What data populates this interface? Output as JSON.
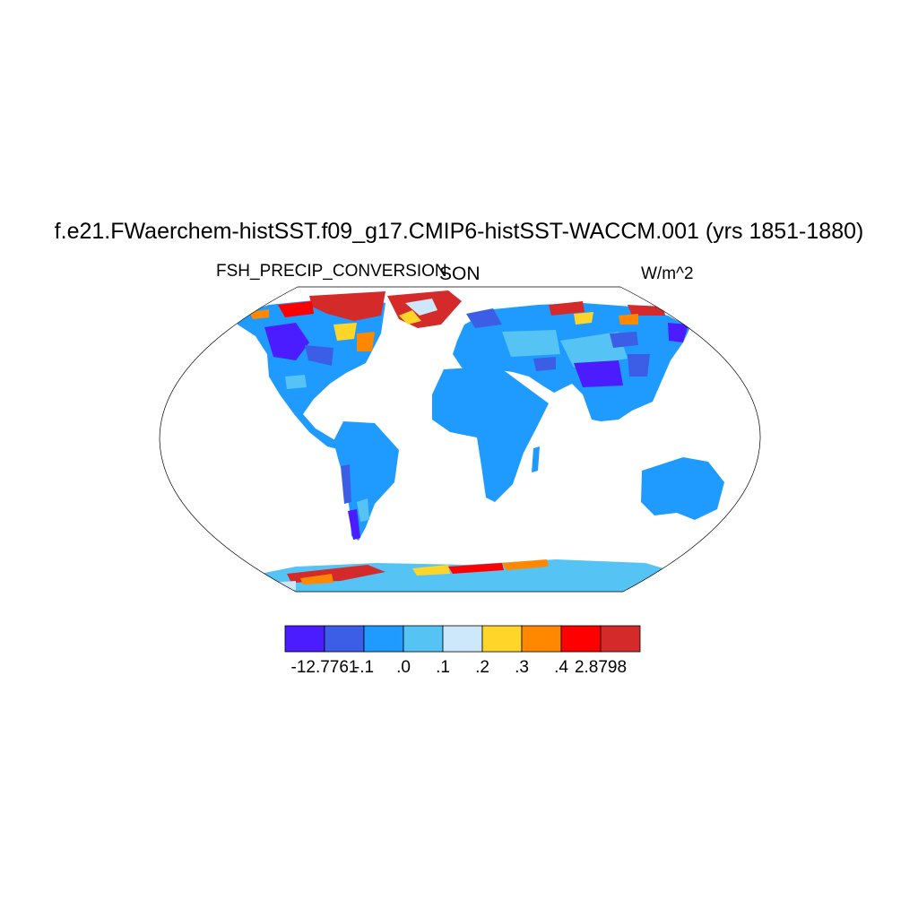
{
  "figure": {
    "title": "f.e21.FWaerchem-histSST.f09_g17.CMIP6-histSST-WACCM.001 (yrs 1851-1880)",
    "variable": "FSH_PRECIP_CONVERSION",
    "season": "SON",
    "units": "W/m^2"
  },
  "colorbar": {
    "colors": [
      "#4a1cff",
      "#3c5ee6",
      "#1f9bff",
      "#55c4f5",
      "#cde8fb",
      "#ffd52a",
      "#ff8800",
      "#ff0000",
      "#d42a2a"
    ],
    "labels": [
      "-12.7761",
      "-.1",
      ".0",
      ".1",
      ".2",
      ".3",
      ".4",
      "2.8798"
    ]
  },
  "map": {
    "projection": "robinson",
    "ocean_color": "#ffffff",
    "dominant_land_color": "#1f9bff"
  }
}
